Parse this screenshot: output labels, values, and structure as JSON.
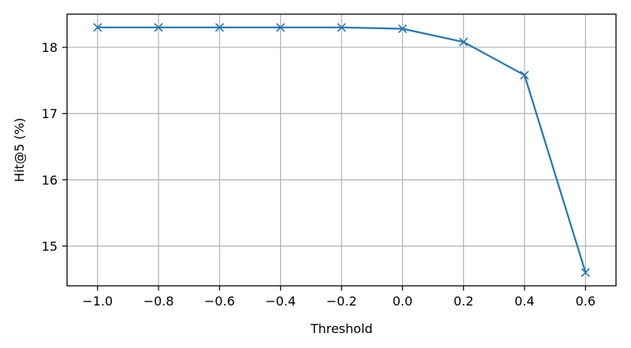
{
  "chart_data": {
    "type": "line",
    "title": "",
    "xlabel": "Threshold",
    "ylabel": "Hit@5 (%)",
    "xlim": [
      -1.1,
      0.7
    ],
    "ylim": [
      14.4,
      18.5
    ],
    "xticks": [
      -1.0,
      -0.8,
      -0.6,
      -0.4,
      -0.2,
      0.0,
      0.2,
      0.4,
      0.6
    ],
    "xtick_labels": [
      "−1.0",
      "−0.8",
      "−0.6",
      "−0.4",
      "−0.2",
      "0.0",
      "0.2",
      "0.4",
      "0.6"
    ],
    "yticks": [
      15,
      16,
      17,
      18
    ],
    "ytick_labels": [
      "15",
      "16",
      "17",
      "18"
    ],
    "grid": true,
    "legend": "none",
    "series": [
      {
        "color": "#1f77b4",
        "marker": "x",
        "x": [
          -1.0,
          -0.8,
          -0.6,
          -0.4,
          -0.2,
          0.0,
          0.2,
          0.4,
          0.6
        ],
        "y": [
          18.3,
          18.3,
          18.3,
          18.3,
          18.3,
          18.28,
          18.08,
          17.58,
          14.6
        ]
      }
    ]
  }
}
